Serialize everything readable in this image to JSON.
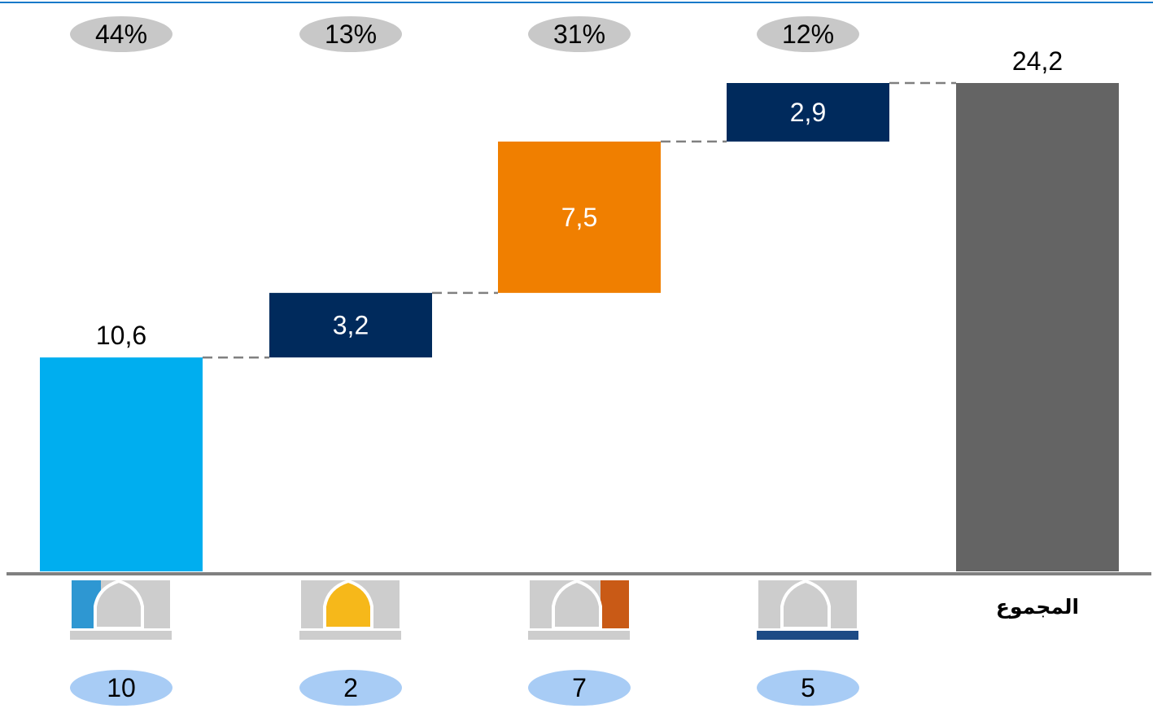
{
  "chart_data": {
    "type": "waterfall",
    "categories": [
      "10",
      "2",
      "7",
      "5",
      "المجموع"
    ],
    "values": [
      10.6,
      3.2,
      7.5,
      2.9,
      24.2
    ],
    "value_labels": [
      "10,6",
      "3,2",
      "7,5",
      "2,9",
      "24,2"
    ],
    "kinds": [
      "base",
      "step",
      "step",
      "step",
      "total"
    ],
    "bar_colors": [
      "#00aeef",
      "#002a5c",
      "#f07f00",
      "#002a5c",
      "#646464"
    ],
    "share_labels": [
      "44%",
      "13%",
      "31%",
      "12%"
    ],
    "count_labels": [
      "10",
      "2",
      "7",
      "5"
    ],
    "total_label": "المجموع",
    "icon_variants": [
      "left-blue",
      "center-yellow",
      "right-orange",
      "underline-navy"
    ],
    "icon_accent_colors": [
      "#2e97d2",
      "#f6b81a",
      "#c95a16",
      "#1d4b85"
    ],
    "ylim": [
      0,
      26.5
    ],
    "grid": false,
    "legend": "none"
  }
}
